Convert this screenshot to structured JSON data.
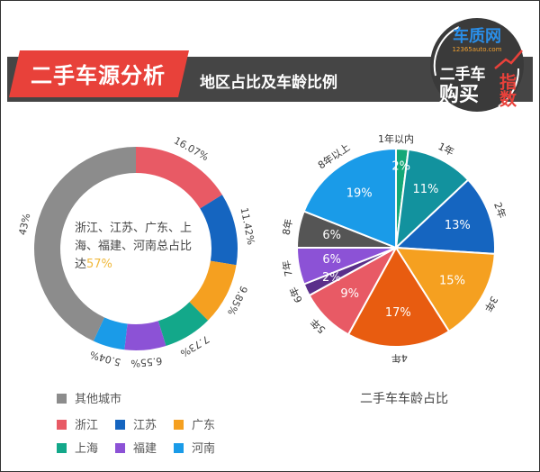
{
  "header": {
    "tag_label": "二手车源分析",
    "subtitle": "地区占比及车龄比例",
    "logo": {
      "brand": "车质网",
      "url_text": "12365auto.com",
      "line1": "二手车",
      "line2": "购买",
      "accent": "指数"
    }
  },
  "colors": {
    "band": "#454545",
    "tag": "#e8413a",
    "highlight": "#f0b93c"
  },
  "donut": {
    "center_text_line1": "浙江、江苏、广东、上",
    "center_text_line2": "海、福建、河南总占比",
    "center_text_prefix": "达",
    "center_text_value": "57%"
  },
  "legend": {
    "items": [
      {
        "label": "其他城市",
        "color": "#8c8c8c"
      },
      {
        "label": "浙江",
        "color": "#e85a65"
      },
      {
        "label": "江苏",
        "color": "#1565c0"
      },
      {
        "label": "广东",
        "color": "#f5a020"
      },
      {
        "label": "上海",
        "color": "#13a88a"
      },
      {
        "label": "福建",
        "color": "#8c52d6"
      },
      {
        "label": "河南",
        "color": "#1a9be8"
      }
    ]
  },
  "pie": {
    "title": "二手车车龄占比"
  },
  "chart_data": [
    {
      "type": "pie",
      "variant": "donut",
      "title": "",
      "categories": [
        "浙江",
        "江苏",
        "广东",
        "上海",
        "福建",
        "河南",
        "其他城市"
      ],
      "values": [
        16.07,
        11.42,
        9.85,
        7.73,
        6.55,
        5.04,
        43
      ],
      "labels": [
        "16.07%",
        "11.42%",
        "9.85%",
        "7.73%",
        "6.55%",
        "5.04%",
        "43%"
      ],
      "colors": [
        "#e85a65",
        "#1565c0",
        "#f5a020",
        "#13a88a",
        "#8c52d6",
        "#1a9be8",
        "#8c8c8c"
      ],
      "annotation": "浙江、江苏、广东、上海、福建、河南总占比达57%",
      "legend_position": "bottom"
    },
    {
      "type": "pie",
      "title": "二手车车龄占比",
      "categories": [
        "1年以内",
        "1年",
        "2年",
        "3年",
        "4年",
        "5年",
        "6年",
        "7年",
        "8年",
        "8年以上"
      ],
      "values": [
        2,
        11,
        13,
        15,
        17,
        9,
        2,
        6,
        6,
        19
      ],
      "labels": [
        "2%",
        "11%",
        "13%",
        "15%",
        "17%",
        "9%",
        "2%",
        "6%",
        "6%",
        "19%"
      ],
      "colors": [
        "#14a878",
        "#12929e",
        "#1565c0",
        "#f5a020",
        "#e85c10",
        "#e85a65",
        "#5a2f8a",
        "#8c52d6",
        "#555555",
        "#1a9be8"
      ]
    }
  ]
}
